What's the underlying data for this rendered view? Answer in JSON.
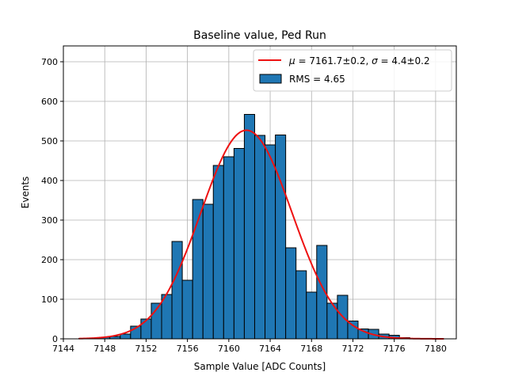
{
  "chart_data": {
    "type": "bar",
    "title": "Baseline value, Ped Run",
    "xlabel": "Sample Value [ADC Counts]",
    "ylabel": "Events",
    "xlim": [
      7144,
      7182
    ],
    "ylim": [
      0,
      740
    ],
    "xticks": [
      7144,
      7148,
      7152,
      7156,
      7160,
      7164,
      7168,
      7172,
      7176,
      7180
    ],
    "yticks": [
      0,
      100,
      200,
      300,
      400,
      500,
      600,
      700
    ],
    "grid": true,
    "legend_position": "top-right",
    "bin_width": 1,
    "histogram": {
      "name": "RMS = 4.65",
      "color": "#1f77b4",
      "bins": [
        {
          "x": 7146,
          "value": 1
        },
        {
          "x": 7147,
          "value": 2
        },
        {
          "x": 7148,
          "value": 4
        },
        {
          "x": 7149,
          "value": 6
        },
        {
          "x": 7150,
          "value": 12
        },
        {
          "x": 7151,
          "value": 32
        },
        {
          "x": 7152,
          "value": 50
        },
        {
          "x": 7153,
          "value": 90
        },
        {
          "x": 7154,
          "value": 112
        },
        {
          "x": 7155,
          "value": 246
        },
        {
          "x": 7156,
          "value": 148
        },
        {
          "x": 7157,
          "value": 352
        },
        {
          "x": 7158,
          "value": 340
        },
        {
          "x": 7159,
          "value": 438
        },
        {
          "x": 7160,
          "value": 460
        },
        {
          "x": 7161,
          "value": 481
        },
        {
          "x": 7162,
          "value": 567
        },
        {
          "x": 7163,
          "value": 514
        },
        {
          "x": 7164,
          "value": 490
        },
        {
          "x": 7165,
          "value": 515
        },
        {
          "x": 7166,
          "value": 230
        },
        {
          "x": 7167,
          "value": 172
        },
        {
          "x": 7168,
          "value": 118
        },
        {
          "x": 7169,
          "value": 236
        },
        {
          "x": 7170,
          "value": 90
        },
        {
          "x": 7171,
          "value": 110
        },
        {
          "x": 7172,
          "value": 45
        },
        {
          "x": 7173,
          "value": 25
        },
        {
          "x": 7174,
          "value": 24
        },
        {
          "x": 7175,
          "value": 12
        },
        {
          "x": 7176,
          "value": 9
        },
        {
          "x": 7177,
          "value": 3
        },
        {
          "x": 7178,
          "value": 1
        },
        {
          "x": 7179,
          "value": 1
        }
      ]
    },
    "fit": {
      "name_prefix": "μ = 7161.7±0.2, σ = 4.4±0.2",
      "mu": 7161.7,
      "sigma": 4.4,
      "amplitude": 527,
      "x_range": [
        7145.5,
        7180.8
      ],
      "color": "#ee1111"
    }
  }
}
